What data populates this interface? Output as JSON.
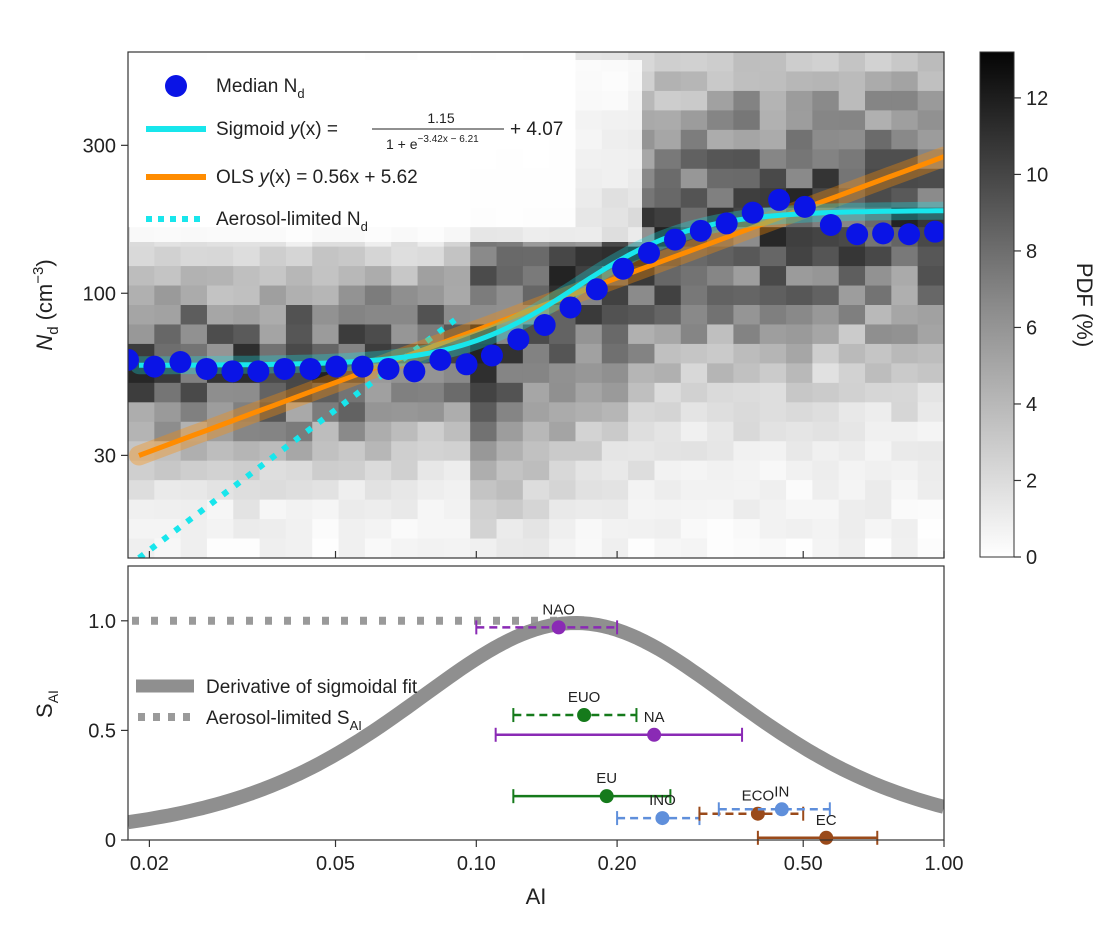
{
  "chart_data": [
    {
      "type": "heatmap",
      "panel": "top",
      "xscale": "log",
      "yscale": "log",
      "xlim": [
        0.018,
        1.0
      ],
      "ylim": [
        14,
        600
      ],
      "ylabel": "N",
      "ylabel_sub": "d",
      "ylabel_unit": "(cm",
      "ylabel_unit_sup": "−3",
      "ylabel_unit_close": ")",
      "yticks": [
        30,
        100,
        300
      ],
      "ytick_labels": [
        "30",
        "100",
        "300"
      ],
      "colorbar": {
        "label": "PDF (%)",
        "range": [
          0,
          13.2
        ],
        "ticks": [
          0,
          2,
          4,
          6,
          8,
          10,
          12
        ],
        "tick_labels": [
          "0",
          "2",
          "4",
          "6",
          "8",
          "10",
          "12"
        ],
        "colormap": "white-to-black"
      },
      "legend": {
        "placement": "top-left",
        "median": {
          "text": "Median N",
          "sub": "d"
        },
        "sigmoid": {
          "prefix": "Sigmoid ",
          "y": "y",
          "x": "(x) = ",
          "numerator": "1.15",
          "den_base": "1 + e",
          "den_exp": "−3.42x − 6.21",
          "suffix": "+ 4.07"
        },
        "ols": {
          "prefix": "OLS ",
          "y": "y",
          "x": "(x) = 0.56x + 5.62"
        },
        "aerosol": {
          "text": "Aerosol-limited N",
          "sub": "d"
        }
      },
      "series": [
        {
          "name": "Median Nd",
          "kind": "scatter",
          "color": "#0a14e6",
          "x": [
            0.018,
            0.0205,
            0.0233,
            0.0265,
            0.0301,
            0.0342,
            0.0389,
            0.0442,
            0.0502,
            0.0571,
            0.0649,
            0.0737,
            0.0838,
            0.0953,
            0.108,
            0.123,
            0.14,
            0.159,
            0.181,
            0.206,
            0.234,
            0.266,
            0.302,
            0.343,
            0.39,
            0.444,
            0.504,
            0.573,
            0.652,
            0.741,
            0.842,
            0.957
          ],
          "y": [
            61,
            58,
            60,
            57,
            56,
            56,
            57,
            57,
            58,
            58,
            57,
            56,
            61,
            59,
            63,
            71,
            79,
            90,
            103,
            120,
            135,
            149,
            159,
            168,
            182,
            200,
            190,
            166,
            155,
            156,
            155,
            158
          ]
        },
        {
          "name": "Sigmoid",
          "kind": "curve",
          "color": "#18e6ec",
          "params": {
            "a": 1.15,
            "b": -3.42,
            "c": -6.21,
            "d": 4.07
          }
        },
        {
          "name": "OLS",
          "kind": "line",
          "color": "#ff8c00",
          "slope": 0.56,
          "intercept": 5.62
        },
        {
          "name": "Aerosol-limited Nd",
          "kind": "dotted-line",
          "color": "#18e6ec",
          "points": [
            [
              0.019,
              14
            ],
            [
              0.09,
              82
            ]
          ]
        }
      ]
    },
    {
      "type": "line",
      "panel": "bottom",
      "xscale": "log",
      "xlim": [
        0.018,
        1.0
      ],
      "ylim": [
        0,
        1.25
      ],
      "xlabel": "AI",
      "ylabel": "S",
      "ylabel_sub": "AI",
      "xticks": [
        0.02,
        0.05,
        0.1,
        0.2,
        0.5,
        1.0
      ],
      "xtick_labels": [
        "0.02",
        "0.05",
        "0.10",
        "0.20",
        "0.50",
        "1.00"
      ],
      "yticks": [
        0,
        0.5,
        1.0
      ],
      "ytick_labels": [
        "0",
        "0.5",
        "1.0"
      ],
      "legend": {
        "placement": "middle-left",
        "derivative": {
          "text": "Derivative of sigmoidal fit"
        },
        "aerosol": {
          "text": "Aerosol-limited S",
          "sub": "AI"
        }
      },
      "series": [
        {
          "name": "Derivative of sigmoidal fit",
          "kind": "curve",
          "color": "#8f8f8f",
          "peak_x": 0.163
        },
        {
          "name": "Aerosol-limited SAI",
          "kind": "dotted-line",
          "color": "#9a9a9a",
          "y": 1.0,
          "x_range": [
            0.018,
            0.163
          ]
        }
      ],
      "regions": [
        {
          "label": "NAO",
          "x": 0.15,
          "xmin": 0.1,
          "xmax": 0.2,
          "y": 0.97,
          "color": "#8a2ab5",
          "style": "dashed"
        },
        {
          "label": "EUO",
          "x": 0.17,
          "xmin": 0.12,
          "xmax": 0.22,
          "y": 0.57,
          "color": "#157a1b",
          "style": "dashed"
        },
        {
          "label": "NA",
          "x": 0.24,
          "xmin": 0.11,
          "xmax": 0.37,
          "y": 0.48,
          "color": "#8a2ab5",
          "style": "solid"
        },
        {
          "label": "EU",
          "x": 0.19,
          "xmin": 0.12,
          "xmax": 0.26,
          "y": 0.2,
          "color": "#157a1b",
          "style": "solid"
        },
        {
          "label": "INO",
          "x": 0.25,
          "xmin": 0.2,
          "xmax": 0.3,
          "y": 0.1,
          "color": "#5f8fdb",
          "style": "dashed"
        },
        {
          "label": "ECO",
          "x": 0.4,
          "xmin": 0.3,
          "xmax": 0.5,
          "y": 0.12,
          "color": "#9a4a1a",
          "style": "dashed"
        },
        {
          "label": "IN",
          "x": 0.45,
          "xmin": 0.33,
          "xmax": 0.57,
          "y": 0.14,
          "color": "#5f8fdb",
          "style": "dashed"
        },
        {
          "label": "EC",
          "x": 0.56,
          "xmin": 0.4,
          "xmax": 0.72,
          "y": 0.01,
          "color": "#9a4a1a",
          "style": "solid"
        }
      ]
    }
  ]
}
